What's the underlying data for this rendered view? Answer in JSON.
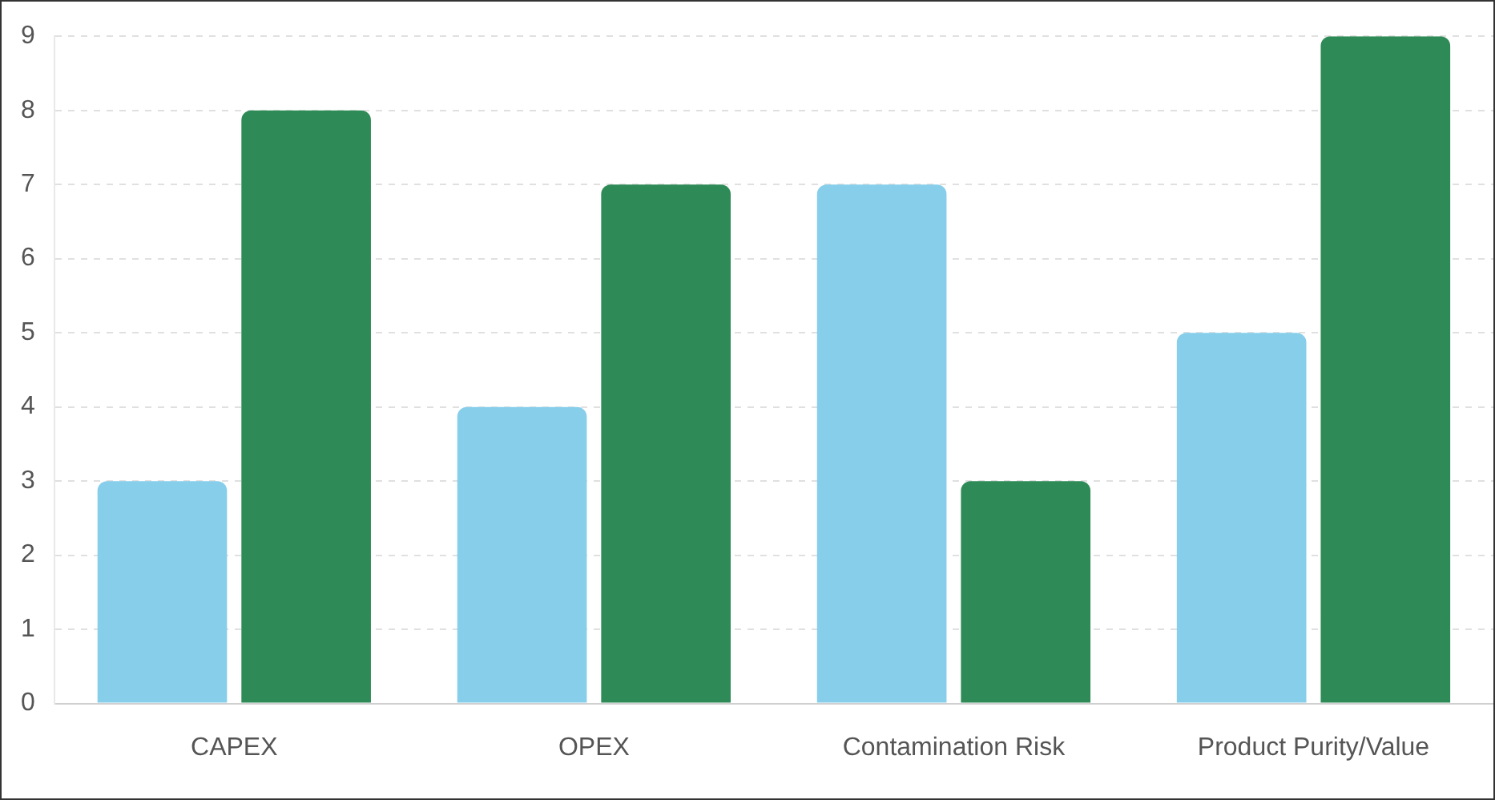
{
  "chart_data": {
    "type": "bar",
    "categories": [
      "CAPEX",
      "OPEX",
      "Contamination Risk",
      "Product Purity/Value"
    ],
    "series": [
      {
        "color": "#87ceeb",
        "values": [
          3,
          4,
          7,
          5
        ]
      },
      {
        "color": "#2e8b57",
        "values": [
          8,
          7,
          3,
          9
        ]
      }
    ],
    "ylim": [
      0,
      9
    ],
    "yticks": [
      0,
      1,
      2,
      3,
      4,
      5,
      6,
      7,
      8,
      9
    ],
    "grid": "y",
    "legend": false
  }
}
